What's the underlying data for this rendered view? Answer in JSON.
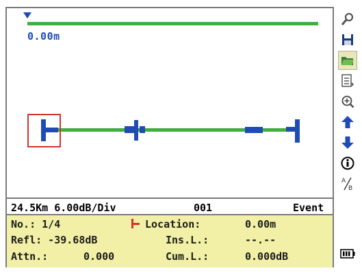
{
  "trace": {
    "distance_readout": "0.00m"
  },
  "status": {
    "range_scale": "24.5Km 6.00dB/Div",
    "file_number": "001",
    "mode": "Event"
  },
  "event_info": {
    "no_label": "No.: 1/4",
    "location_label": "Location:",
    "location_value": "0.00m",
    "refl_label": "Refl: -39.68dB",
    "ins_loss_label": "Ins.L.:",
    "ins_loss_value": "--.--",
    "attn_label": "Attn.:",
    "attn_value": "0.000",
    "cum_loss_label": "Cum.L.:",
    "cum_loss_value": "0.000dB"
  },
  "toolbar": {
    "tools": [
      {
        "icon": "setup-tools-icon"
      },
      {
        "icon": "save-icon"
      },
      {
        "icon": "open-folder-icon",
        "active": true
      },
      {
        "icon": "event-table-icon"
      },
      {
        "icon": "zoom-icon"
      },
      {
        "icon": "arrow-up-icon"
      },
      {
        "icon": "arrow-down-icon"
      },
      {
        "icon": "info-icon"
      },
      {
        "icon": "cursor-a-b-icon"
      }
    ],
    "battery_icon": "battery-icon"
  },
  "colors": {
    "trace_green": "#3fae3f",
    "event_blue": "#1f4bb3",
    "selection_red": "#d0342c",
    "info_panel": "#f2f0a6"
  }
}
